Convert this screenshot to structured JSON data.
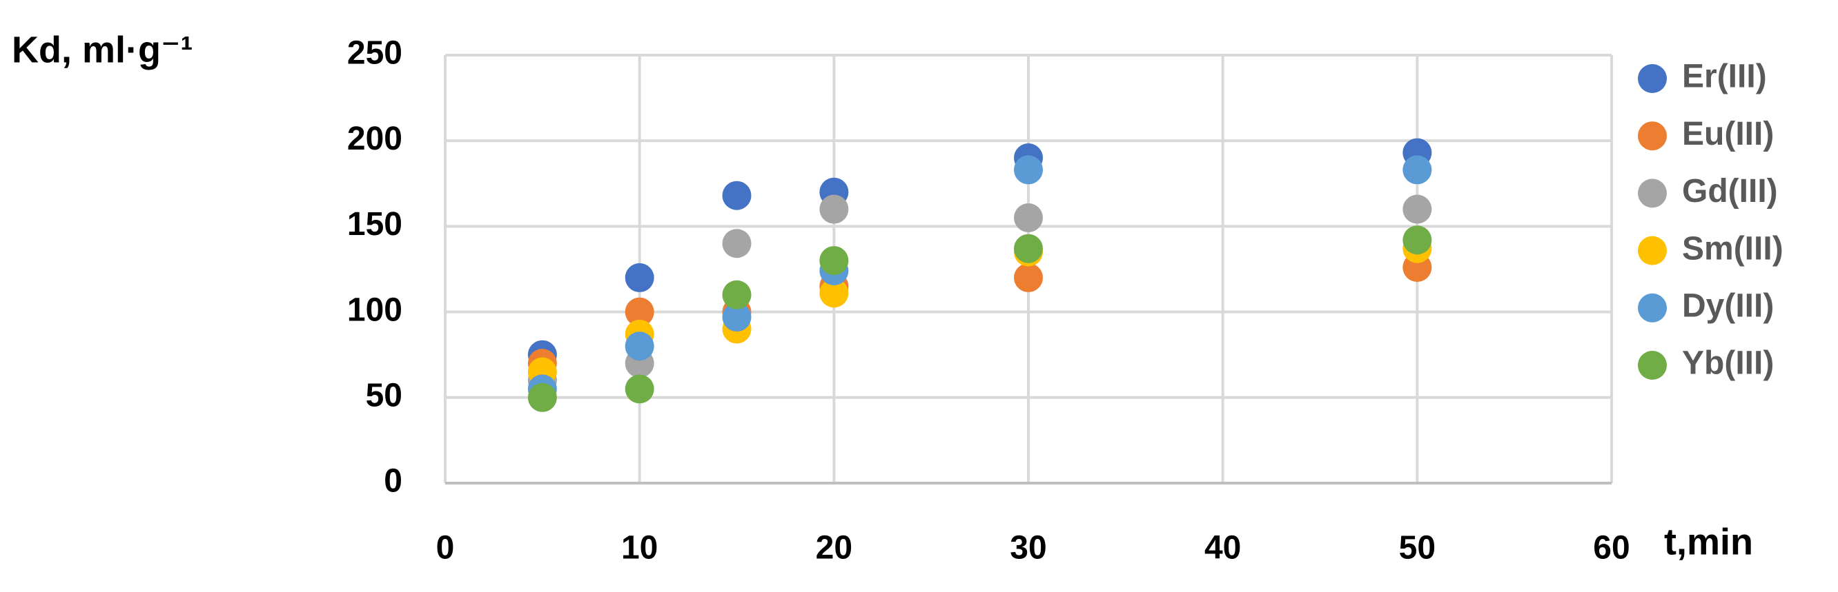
{
  "chart_data": {
    "type": "scatter",
    "title": "Kd, ml·g⁻¹",
    "x_label": "t,min",
    "x": [
      5,
      10,
      15,
      20,
      30,
      50
    ],
    "series": [
      {
        "name": "Er(III)",
        "color": "#4472c4",
        "values": [
          75,
          120,
          168,
          170,
          190,
          193
        ]
      },
      {
        "name": "Eu(III)",
        "color": "#ed7d31",
        "values": [
          70,
          100,
          100,
          115,
          120,
          126
        ]
      },
      {
        "name": "Gd(III)",
        "color": "#a5a5a5",
        "values": [
          60,
          70,
          140,
          160,
          155,
          160
        ]
      },
      {
        "name": "Sm(III)",
        "color": "#ffc000",
        "values": [
          65,
          87,
          90,
          111,
          135,
          137
        ]
      },
      {
        "name": "Dy(III)",
        "color": "#5b9bd5",
        "values": [
          55,
          80,
          97,
          124,
          183,
          183
        ]
      },
      {
        "name": "Yb(III)",
        "color": "#70ad47",
        "values": [
          50,
          55,
          110,
          130,
          137,
          142
        ]
      }
    ],
    "xlim": [
      0,
      60
    ],
    "xticks": [
      0,
      10,
      20,
      30,
      40,
      50,
      60
    ],
    "ylim": [
      0,
      250
    ],
    "yticks": [
      0,
      50,
      100,
      150,
      200,
      250
    ],
    "grid": true,
    "legend": "right"
  }
}
